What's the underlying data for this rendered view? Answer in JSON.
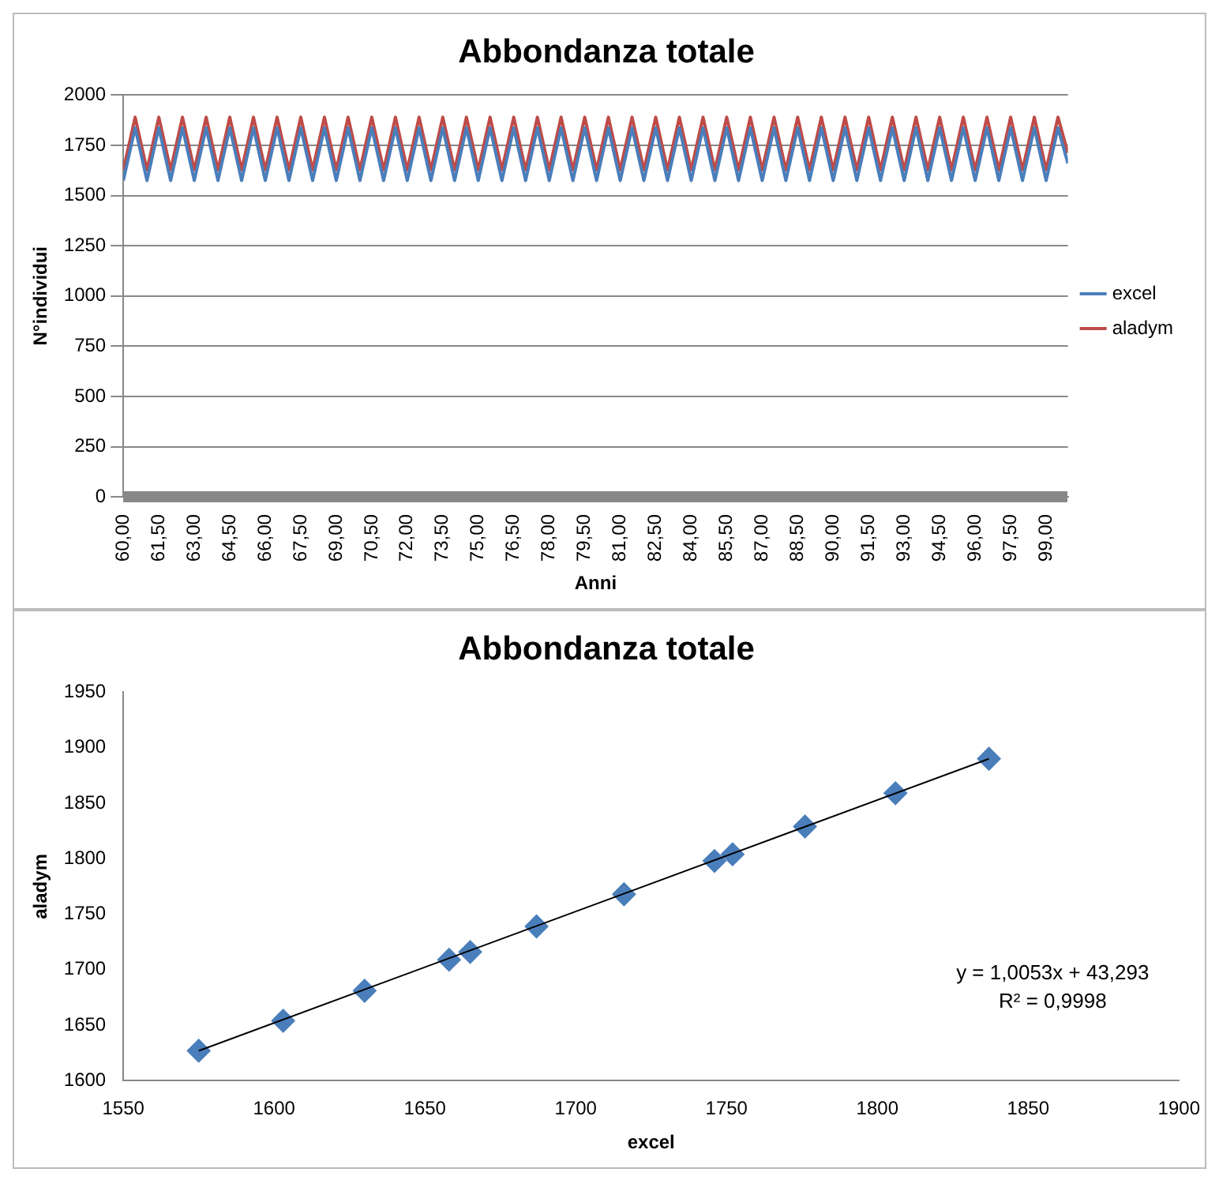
{
  "chart_data": [
    {
      "type": "line",
      "title": "Abbondanza totale",
      "xlabel": "Anni",
      "ylabel": "N°individui",
      "legend": "right",
      "grid": "y",
      "marker": "none",
      "x": [
        60,
        60.5,
        61,
        61.5,
        62,
        62.5,
        63,
        63.5,
        64,
        64.5,
        65,
        65.5,
        66,
        66.5,
        67,
        67.5,
        68,
        68.5,
        69,
        69.5,
        70,
        70.5,
        71,
        71.5,
        72,
        72.5,
        73,
        73.5,
        74,
        74.5,
        75,
        75.5,
        76,
        76.5,
        77,
        77.5,
        78,
        78.5,
        79,
        79.5,
        80,
        80.5,
        81,
        81.5,
        82,
        82.5,
        83,
        83.5,
        84,
        84.5,
        85,
        85.5,
        86,
        86.5,
        87,
        87.5,
        88,
        88.5,
        89,
        89.5,
        90,
        90.5,
        91,
        91.5,
        92,
        92.5,
        93,
        93.5,
        94,
        94.5,
        95,
        95.5,
        96,
        96.5,
        97,
        97.5,
        98,
        98.5,
        99,
        99.5,
        99.92
      ],
      "xlim": [
        60,
        99.92
      ],
      "xticks": [
        {
          "value": 60,
          "label": "60,00"
        },
        {
          "value": 61.5,
          "label": "61,50"
        },
        {
          "value": 63,
          "label": "63,00"
        },
        {
          "value": 64.5,
          "label": "64,50"
        },
        {
          "value": 66,
          "label": "66,00"
        },
        {
          "value": 67.5,
          "label": "67,50"
        },
        {
          "value": 69,
          "label": "69,00"
        },
        {
          "value": 70.5,
          "label": "70,50"
        },
        {
          "value": 72,
          "label": "72,00"
        },
        {
          "value": 73.5,
          "label": "73,50"
        },
        {
          "value": 75,
          "label": "75,00"
        },
        {
          "value": 76.5,
          "label": "76,50"
        },
        {
          "value": 78,
          "label": "78,00"
        },
        {
          "value": 79.5,
          "label": "79,50"
        },
        {
          "value": 81,
          "label": "81,00"
        },
        {
          "value": 82.5,
          "label": "82,50"
        },
        {
          "value": 84,
          "label": "84,00"
        },
        {
          "value": 85.5,
          "label": "85,50"
        },
        {
          "value": 87,
          "label": "87,00"
        },
        {
          "value": 88.5,
          "label": "88,50"
        },
        {
          "value": 90,
          "label": "90,00"
        },
        {
          "value": 91.5,
          "label": "91,50"
        },
        {
          "value": 93,
          "label": "93,00"
        },
        {
          "value": 94.5,
          "label": "94,50"
        },
        {
          "value": 96,
          "label": "96,00"
        },
        {
          "value": 97.5,
          "label": "97,50"
        },
        {
          "value": 99,
          "label": "99,00"
        }
      ],
      "ylim": [
        0,
        2000
      ],
      "yticks": [
        0,
        250,
        500,
        750,
        1000,
        1250,
        1500,
        1750,
        2000
      ],
      "series": [
        {
          "name": "excel",
          "color": "#4a7ebb",
          "values": [
            1575,
            1837,
            1575,
            1837,
            1575,
            1837,
            1575,
            1837,
            1575,
            1837,
            1575,
            1837,
            1575,
            1837,
            1575,
            1837,
            1575,
            1837,
            1575,
            1837,
            1575,
            1837,
            1575,
            1837,
            1575,
            1837,
            1575,
            1837,
            1575,
            1837,
            1575,
            1837,
            1575,
            1837,
            1575,
            1837,
            1575,
            1837,
            1575,
            1837,
            1575,
            1837,
            1575,
            1837,
            1575,
            1837,
            1575,
            1837,
            1575,
            1837,
            1575,
            1837,
            1575,
            1837,
            1575,
            1837,
            1575,
            1837,
            1575,
            1837,
            1575,
            1837,
            1575,
            1837,
            1575,
            1837,
            1575,
            1837,
            1575,
            1837,
            1575,
            1837,
            1575,
            1837,
            1575,
            1837,
            1575,
            1837,
            1575,
            1837,
            1660
          ]
        },
        {
          "name": "aladym",
          "color": "#be4b48",
          "values": [
            1627,
            1890,
            1627,
            1890,
            1627,
            1890,
            1627,
            1890,
            1627,
            1890,
            1627,
            1890,
            1627,
            1890,
            1627,
            1890,
            1627,
            1890,
            1627,
            1890,
            1627,
            1890,
            1627,
            1890,
            1627,
            1890,
            1627,
            1890,
            1627,
            1890,
            1627,
            1890,
            1627,
            1890,
            1627,
            1890,
            1627,
            1890,
            1627,
            1890,
            1627,
            1890,
            1627,
            1890,
            1627,
            1890,
            1627,
            1890,
            1627,
            1890,
            1627,
            1890,
            1627,
            1890,
            1627,
            1890,
            1627,
            1890,
            1627,
            1890,
            1627,
            1890,
            1627,
            1890,
            1627,
            1890,
            1627,
            1890,
            1627,
            1890,
            1627,
            1890,
            1627,
            1890,
            1627,
            1890,
            1627,
            1890,
            1627,
            1890,
            1712
          ]
        }
      ]
    },
    {
      "type": "scatter",
      "title": "Abbondanza totale",
      "xlabel": "excel",
      "ylabel": "aladym",
      "marker": "diamond",
      "xlim": [
        1550,
        1900
      ],
      "xticks": [
        1550,
        1600,
        1650,
        1700,
        1750,
        1800,
        1850,
        1900
      ],
      "ylim": [
        1600,
        1950
      ],
      "yticks": [
        1600,
        1650,
        1700,
        1750,
        1800,
        1850,
        1900,
        1950
      ],
      "annotations": [
        "y = 1,0053x + 43,293",
        "R² = 0,9998"
      ],
      "series": [
        {
          "color": "#4a7ebb",
          "x": [
            1575,
            1603,
            1630,
            1658,
            1665,
            1687,
            1716,
            1746,
            1752,
            1776,
            1806,
            1837
          ],
          "values": [
            1627,
            1654,
            1681,
            1709,
            1716,
            1739,
            1768,
            1798,
            1804,
            1829,
            1859,
            1890
          ]
        },
        {
          "type": "line",
          "color": "#000000",
          "marker": "none",
          "x": [
            1575,
            1837
          ],
          "values": [
            1627,
            1890
          ]
        }
      ]
    }
  ]
}
